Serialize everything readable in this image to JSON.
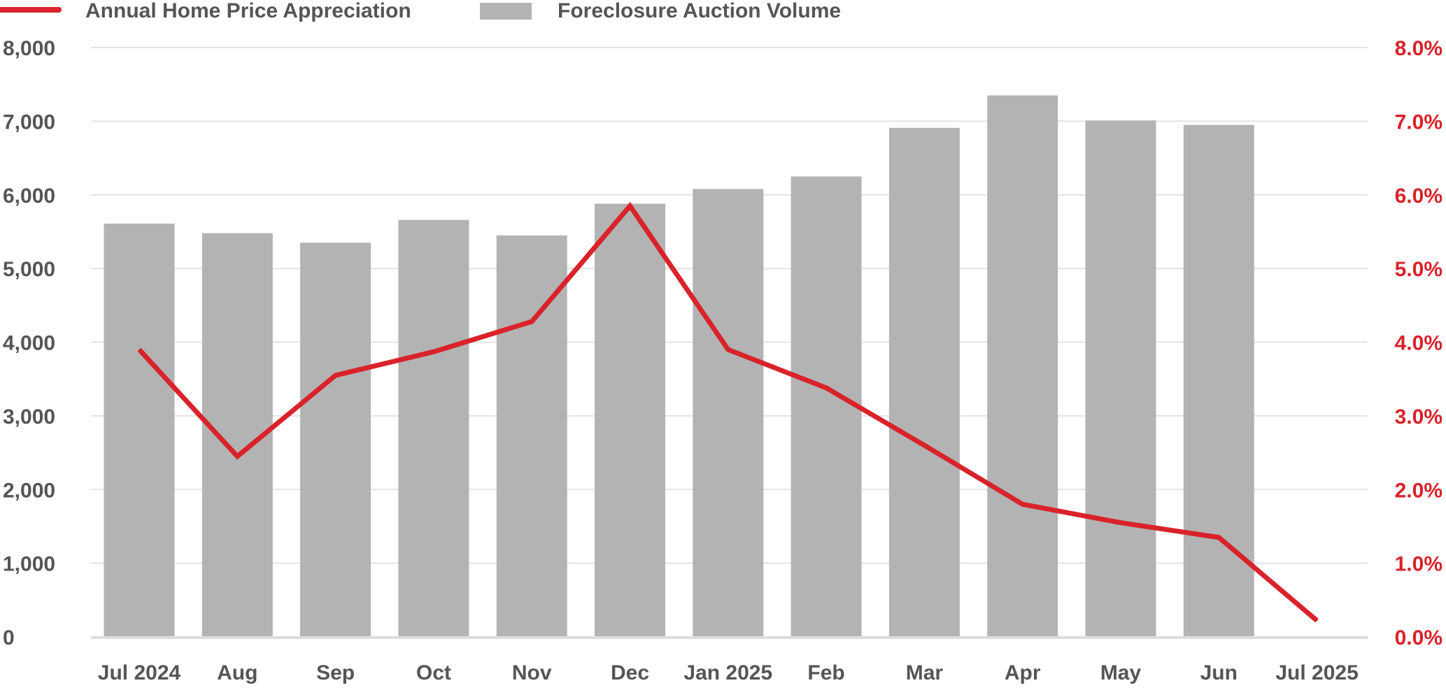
{
  "chart_data": {
    "type": "bar",
    "title": "",
    "categories": [
      "Jul 2024",
      "Aug",
      "Sep",
      "Oct",
      "Nov",
      "Dec",
      "Jan 2025",
      "Feb",
      "Mar",
      "Apr",
      "May",
      "Jun",
      "Jul 2025"
    ],
    "series": [
      {
        "name": "Foreclosure Auction Volume",
        "type": "bar",
        "axis": "left",
        "color": "#b3b3b3",
        "values": [
          5610,
          5480,
          5350,
          5660,
          5450,
          5880,
          6080,
          6250,
          6910,
          7350,
          7010,
          6950,
          null
        ]
      },
      {
        "name": "Annual Home Price Appreciation",
        "type": "line",
        "axis": "right",
        "color": "#d9222a",
        "values": [
          3.9,
          2.45,
          3.55,
          3.87,
          4.28,
          5.85,
          3.9,
          3.38,
          2.6,
          1.8,
          1.55,
          1.35,
          0.22
        ]
      }
    ],
    "y_left": {
      "min": 0,
      "max": 8000,
      "step": 1000,
      "tick_labels": [
        "0",
        "1,000",
        "2,000",
        "3,000",
        "4,000",
        "5,000",
        "6,000",
        "7,000",
        "8,000"
      ]
    },
    "y_right": {
      "min": 0,
      "max": 8,
      "step": 1,
      "tick_labels": [
        "0.0%",
        "1.0%",
        "2.0%",
        "3.0%",
        "4.0%",
        "5.0%",
        "6.0%",
        "7.0%",
        "8.0%"
      ],
      "color": "#d9222a"
    },
    "grid": true,
    "legend": {
      "placement": "top-left",
      "order": [
        "Annual Home Price Appreciation",
        "Foreclosure Auction Volume"
      ]
    },
    "colors": {
      "grid": "#e3e3e3",
      "axis": "#dddddd",
      "text": "#555555"
    }
  }
}
